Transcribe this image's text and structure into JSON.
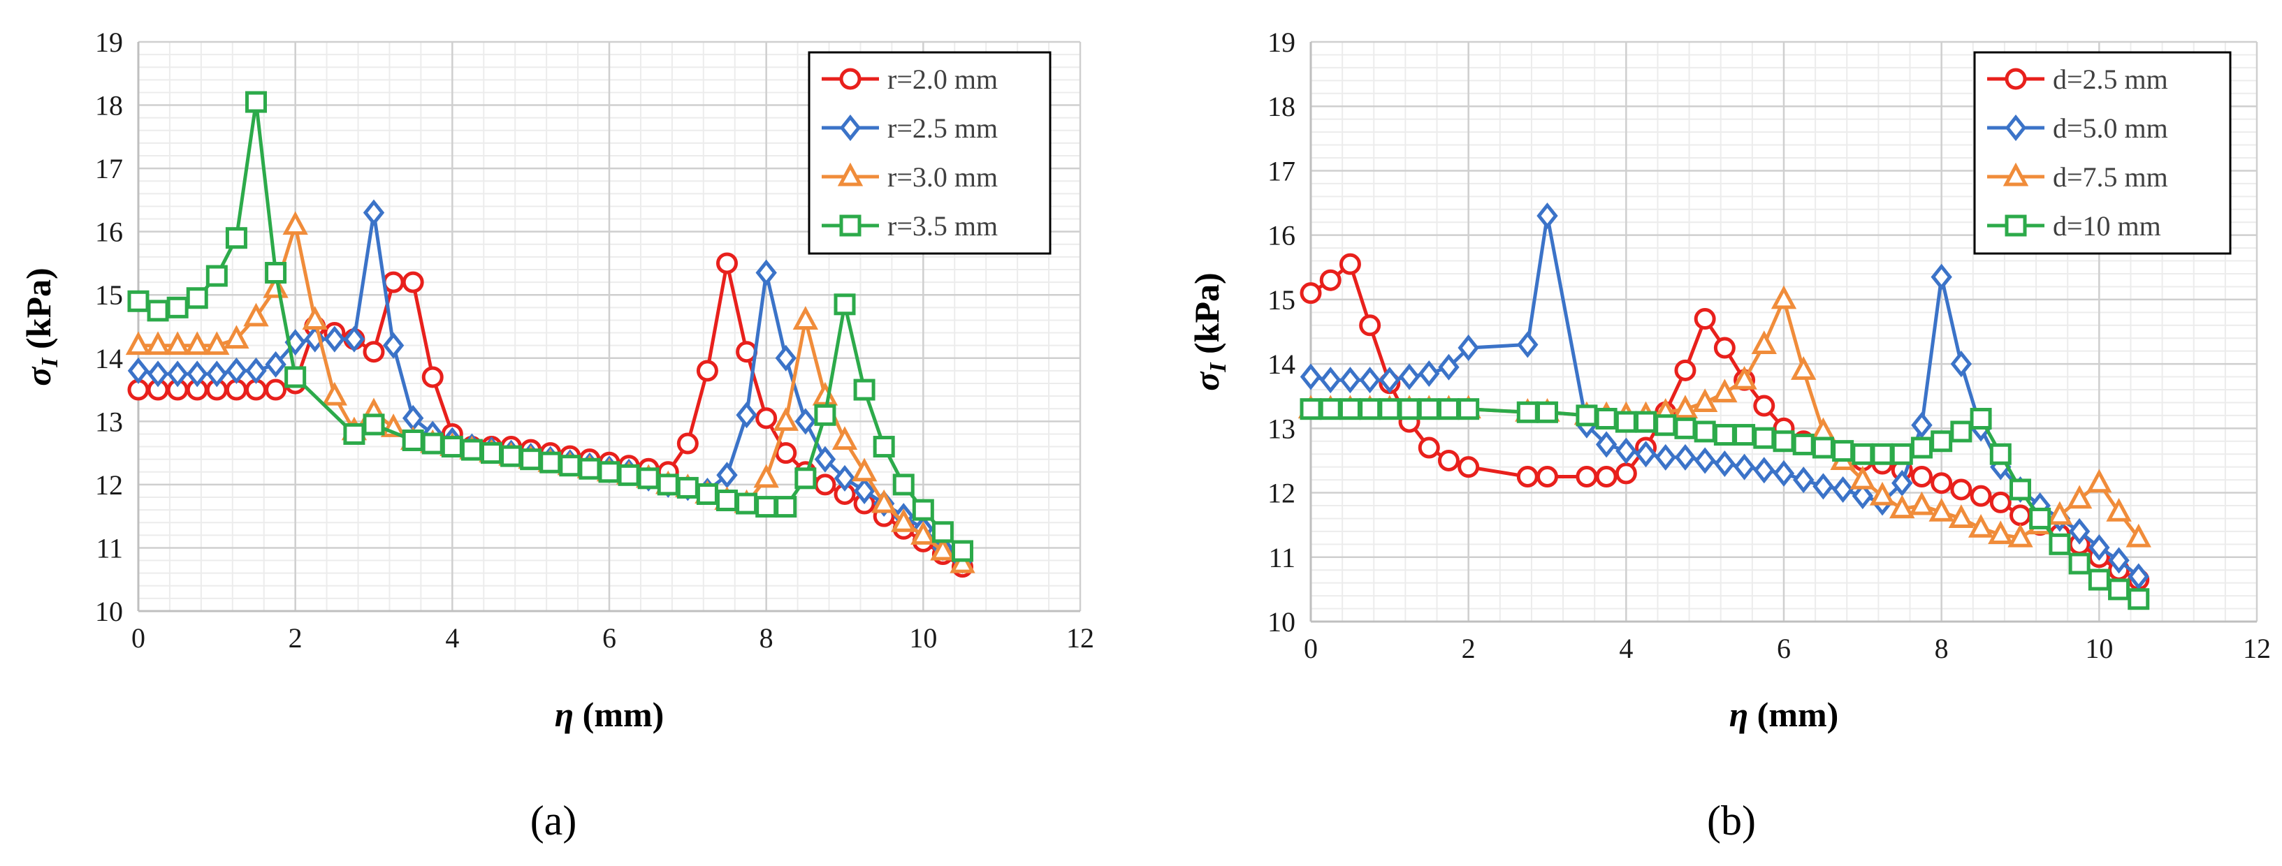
{
  "chart_data": [
    {
      "type": "line",
      "panel_label": "(a)",
      "xlabel": {
        "symbol": "η",
        "unit": " (mm)"
      },
      "ylabel": {
        "symbol": "σ",
        "subscript": "I",
        "unit": "  (kPa)"
      },
      "xlim": [
        0,
        12
      ],
      "ylim": [
        10,
        19
      ],
      "xticks": [
        0,
        2,
        4,
        6,
        8,
        10,
        12
      ],
      "yticks": [
        10,
        11,
        12,
        13,
        14,
        15,
        16,
        17,
        18,
        19
      ],
      "grid": true,
      "legend_position": "top-right",
      "series": [
        {
          "name": "r=2.0 mm",
          "color": "#e8201c",
          "marker": "circle",
          "x": [
            0,
            0.25,
            0.5,
            0.75,
            1,
            1.25,
            1.5,
            1.75,
            2,
            2.25,
            2.5,
            2.75,
            3,
            3.25,
            3.5,
            3.75,
            4,
            4.25,
            4.5,
            4.75,
            5,
            5.25,
            5.5,
            5.75,
            6,
            6.25,
            6.5,
            6.75,
            7,
            7.25,
            7.5,
            7.75,
            8,
            8.25,
            8.5,
            8.75,
            9,
            9.25,
            9.5,
            9.75,
            10,
            10.25,
            10.5
          ],
          "y": [
            13.5,
            13.5,
            13.5,
            13.5,
            13.5,
            13.5,
            13.5,
            13.5,
            13.6,
            14.5,
            14.4,
            14.3,
            14.1,
            15.2,
            15.2,
            13.7,
            12.8,
            12.6,
            12.6,
            12.6,
            12.55,
            12.5,
            12.45,
            12.4,
            12.35,
            12.3,
            12.25,
            12.2,
            12.65,
            13.8,
            15.5,
            14.1,
            13.05,
            12.5,
            12.2,
            12.0,
            11.85,
            11.7,
            11.5,
            11.3,
            11.1,
            10.9,
            10.7
          ]
        },
        {
          "name": "r=2.5 mm",
          "color": "#3b73c8",
          "marker": "diamond",
          "x": [
            0,
            0.25,
            0.5,
            0.75,
            1,
            1.25,
            1.5,
            1.75,
            2,
            2.25,
            2.5,
            2.75,
            3,
            3.25,
            3.5,
            3.75,
            4,
            4.25,
            4.5,
            4.75,
            5,
            5.25,
            5.5,
            5.75,
            6,
            6.25,
            6.5,
            6.75,
            7,
            7.25,
            7.5,
            7.75,
            8,
            8.25,
            8.5,
            8.75,
            9,
            9.25,
            9.5,
            9.75,
            10,
            10.25,
            10.5
          ],
          "y": [
            13.8,
            13.75,
            13.75,
            13.75,
            13.75,
            13.8,
            13.8,
            13.9,
            14.25,
            14.3,
            14.3,
            14.3,
            16.3,
            14.2,
            13.05,
            12.8,
            12.7,
            12.6,
            12.55,
            12.5,
            12.45,
            12.4,
            12.35,
            12.3,
            12.25,
            12.2,
            12.1,
            12.0,
            11.95,
            11.9,
            12.15,
            13.1,
            15.35,
            14.0,
            13.0,
            12.4,
            12.1,
            11.9,
            11.7,
            11.5,
            11.3,
            11.0,
            10.8
          ]
        },
        {
          "name": "r=3.0 mm",
          "color": "#f08c3a",
          "marker": "triangle",
          "x": [
            0,
            0.25,
            0.5,
            0.75,
            1,
            1.25,
            1.5,
            1.75,
            2,
            2.25,
            2.5,
            2.75,
            3,
            3.25,
            3.5,
            3.75,
            4,
            4.25,
            4.5,
            4.75,
            5,
            5.25,
            5.5,
            5.75,
            6,
            6.25,
            6.5,
            6.75,
            7,
            7.25,
            7.5,
            7.75,
            8,
            8.25,
            8.5,
            8.75,
            9,
            9.25,
            9.5,
            9.75,
            10,
            10.25,
            10.5
          ],
          "y": [
            14.2,
            14.2,
            14.2,
            14.2,
            14.2,
            14.3,
            14.65,
            15.1,
            16.1,
            14.6,
            13.4,
            12.85,
            13.15,
            12.9,
            12.7,
            12.65,
            12.6,
            12.55,
            12.5,
            12.45,
            12.4,
            12.35,
            12.3,
            12.25,
            12.2,
            12.15,
            12.1,
            12.0,
            11.95,
            11.85,
            11.75,
            11.7,
            12.1,
            13.0,
            14.6,
            13.4,
            12.7,
            12.2,
            11.7,
            11.4,
            11.2,
            10.95,
            10.75
          ]
        },
        {
          "name": "r=3.5 mm",
          "color": "#2caa4a",
          "marker": "square",
          "x": [
            0,
            0.25,
            0.5,
            0.75,
            1,
            1.25,
            1.5,
            1.75,
            2,
            2.75,
            3,
            3.5,
            3.75,
            4,
            4.25,
            4.5,
            4.75,
            5,
            5.25,
            5.5,
            5.75,
            6,
            6.25,
            6.5,
            6.75,
            7,
            7.25,
            7.5,
            7.75,
            8,
            8.25,
            8.5,
            8.75,
            9,
            9.25,
            9.5,
            9.75,
            10,
            10.25,
            10.5
          ],
          "y": [
            14.9,
            14.75,
            14.8,
            14.95,
            15.3,
            15.9,
            18.05,
            15.35,
            13.7,
            12.8,
            12.95,
            12.7,
            12.65,
            12.6,
            12.55,
            12.5,
            12.45,
            12.4,
            12.35,
            12.3,
            12.25,
            12.2,
            12.15,
            12.1,
            12.0,
            11.95,
            11.85,
            11.75,
            11.7,
            11.65,
            11.65,
            12.1,
            13.1,
            14.85,
            13.5,
            12.6,
            12.0,
            11.6,
            11.25,
            10.95
          ]
        }
      ]
    },
    {
      "type": "line",
      "panel_label": "(b)",
      "xlabel": {
        "symbol": "η",
        "unit": " (mm)"
      },
      "ylabel": {
        "symbol": "σ",
        "subscript": "I",
        "unit": "  (kPa)"
      },
      "xlim": [
        0,
        12
      ],
      "ylim": [
        10,
        19
      ],
      "xticks": [
        0,
        2,
        4,
        6,
        8,
        10,
        12
      ],
      "yticks": [
        10,
        11,
        12,
        13,
        14,
        15,
        16,
        17,
        18,
        19
      ],
      "grid": true,
      "legend_position": "top-right",
      "series": [
        {
          "name": "d=2.5 mm",
          "color": "#e8201c",
          "marker": "circle",
          "x": [
            0,
            0.25,
            0.5,
            0.75,
            1,
            1.25,
            1.5,
            1.75,
            2,
            2.75,
            3,
            3.5,
            3.75,
            4,
            4.25,
            4.5,
            4.75,
            5,
            5.25,
            5.5,
            5.75,
            6,
            6.25,
            6.5,
            6.75,
            7,
            7.25,
            7.5,
            7.75,
            8,
            8.25,
            8.5,
            8.75,
            9,
            9.25,
            9.5,
            9.75,
            10,
            10.25,
            10.5
          ],
          "y": [
            15.1,
            15.3,
            15.55,
            14.6,
            13.7,
            13.1,
            12.7,
            12.5,
            12.4,
            12.25,
            12.25,
            12.25,
            12.25,
            12.3,
            12.7,
            13.25,
            13.9,
            14.7,
            14.25,
            13.75,
            13.35,
            13.0,
            12.8,
            12.7,
            12.6,
            12.5,
            12.45,
            12.35,
            12.25,
            12.15,
            12.05,
            11.95,
            11.85,
            11.65,
            11.5,
            11.35,
            11.2,
            11.0,
            10.8,
            10.65
          ]
        },
        {
          "name": "d=5.0 mm",
          "color": "#3b73c8",
          "marker": "diamond",
          "x": [
            0,
            0.25,
            0.5,
            0.75,
            1,
            1.25,
            1.5,
            1.75,
            2,
            2.75,
            3,
            3.5,
            3.75,
            4,
            4.25,
            4.5,
            4.75,
            5,
            5.25,
            5.5,
            5.75,
            6,
            6.25,
            6.5,
            6.75,
            7,
            7.25,
            7.5,
            7.75,
            8,
            8.25,
            8.5,
            8.75,
            9,
            9.25,
            9.5,
            9.75,
            10,
            10.25,
            10.5
          ],
          "y": [
            13.8,
            13.75,
            13.75,
            13.75,
            13.75,
            13.8,
            13.85,
            13.95,
            14.25,
            14.3,
            16.3,
            13.05,
            12.75,
            12.65,
            12.6,
            12.55,
            12.55,
            12.5,
            12.45,
            12.4,
            12.35,
            12.3,
            12.2,
            12.1,
            12.05,
            11.95,
            11.85,
            12.15,
            13.05,
            15.35,
            14.0,
            13.0,
            12.4,
            12.05,
            11.8,
            11.6,
            11.4,
            11.15,
            10.95,
            10.7
          ]
        },
        {
          "name": "d=7.5 mm",
          "color": "#f08c3a",
          "marker": "triangle",
          "x": [
            0,
            0.25,
            0.5,
            0.75,
            1,
            1.25,
            1.5,
            1.75,
            2,
            2.75,
            3,
            3.5,
            3.75,
            4,
            4.25,
            4.5,
            4.75,
            5,
            5.25,
            5.5,
            5.75,
            6,
            6.25,
            6.5,
            6.75,
            7,
            7.25,
            7.5,
            7.75,
            8,
            8.25,
            8.5,
            8.75,
            9,
            9.25,
            9.5,
            9.75,
            10,
            10.25,
            10.5
          ],
          "y": [
            13.3,
            13.3,
            13.3,
            13.3,
            13.3,
            13.3,
            13.3,
            13.3,
            13.3,
            13.25,
            13.25,
            13.2,
            13.2,
            13.2,
            13.2,
            13.25,
            13.3,
            13.4,
            13.55,
            13.75,
            14.3,
            15.0,
            13.9,
            12.95,
            12.5,
            12.2,
            11.95,
            11.75,
            11.8,
            11.7,
            11.6,
            11.45,
            11.35,
            11.3,
            11.5,
            11.65,
            11.9,
            12.15,
            11.7,
            11.3
          ]
        },
        {
          "name": "d=10 mm",
          "color": "#2caa4a",
          "marker": "square",
          "x": [
            0,
            0.25,
            0.5,
            0.75,
            1,
            1.25,
            1.5,
            1.75,
            2,
            2.75,
            3,
            3.5,
            3.75,
            4,
            4.25,
            4.5,
            4.75,
            5,
            5.25,
            5.5,
            5.75,
            6,
            6.25,
            6.5,
            6.75,
            7,
            7.25,
            7.5,
            7.75,
            8,
            8.25,
            8.5,
            8.75,
            9,
            9.25,
            9.5,
            9.75,
            10,
            10.25,
            10.5
          ],
          "y": [
            13.3,
            13.3,
            13.3,
            13.3,
            13.3,
            13.3,
            13.3,
            13.3,
            13.3,
            13.25,
            13.25,
            13.2,
            13.15,
            13.1,
            13.1,
            13.05,
            13.0,
            12.95,
            12.9,
            12.9,
            12.85,
            12.8,
            12.75,
            12.7,
            12.65,
            12.6,
            12.6,
            12.6,
            12.7,
            12.8,
            12.95,
            13.15,
            12.6,
            12.05,
            11.6,
            11.2,
            10.9,
            10.65,
            10.5,
            10.35
          ]
        }
      ]
    }
  ]
}
